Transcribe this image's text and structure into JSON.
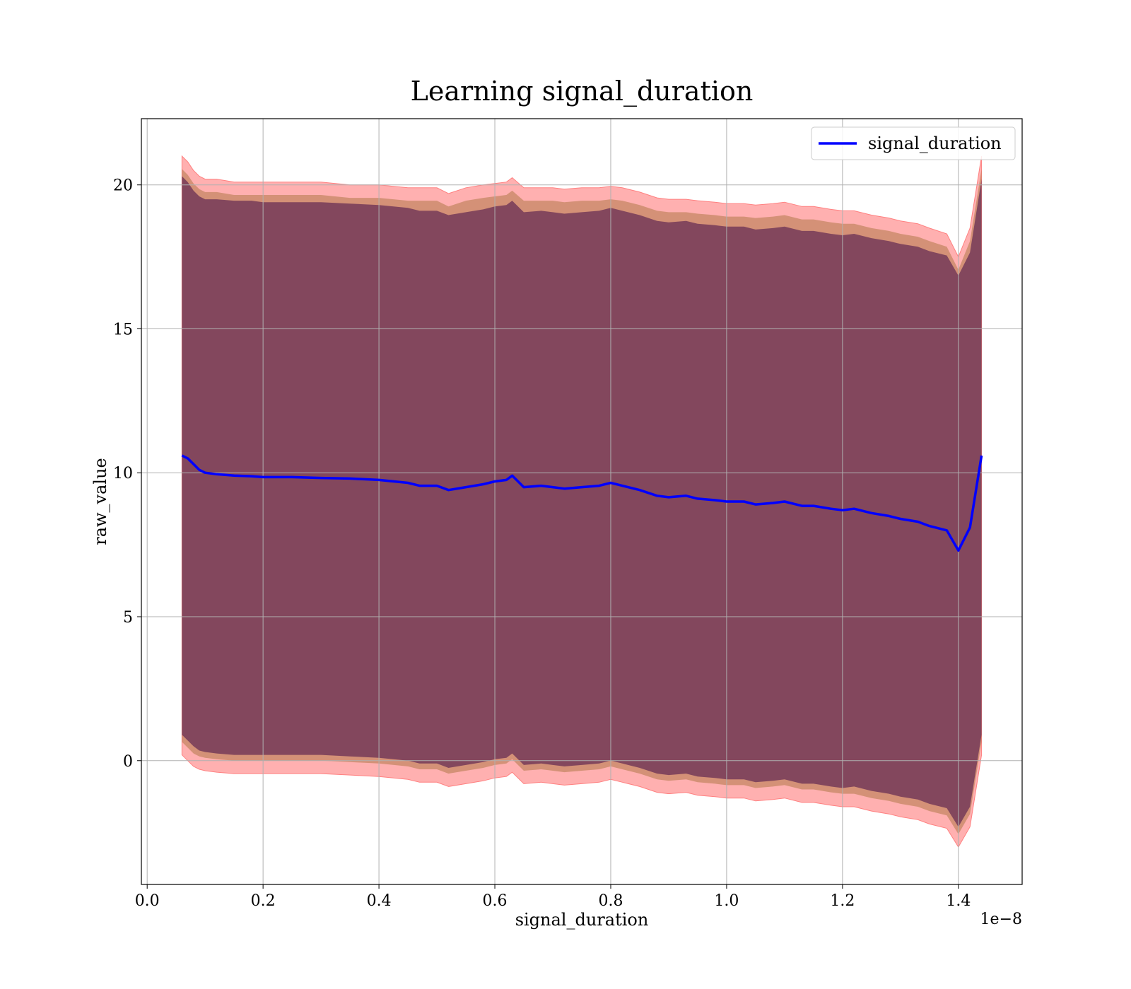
{
  "chart_data": {
    "type": "line",
    "title": "Learning signal_duration",
    "xlabel": "signal_duration",
    "ylabel": "raw_value",
    "x_offset_label": "1e−8",
    "xlim": [
      -0.01,
      1.51
    ],
    "ylim": [
      -4.3,
      22.3
    ],
    "x_ticks": [
      0.0,
      0.2,
      0.4,
      0.6,
      0.8,
      1.0,
      1.2,
      1.4
    ],
    "x_tick_labels": [
      "0.0",
      "0.2",
      "0.4",
      "0.6",
      "0.8",
      "1.0",
      "1.2",
      "1.4"
    ],
    "y_ticks": [
      0,
      5,
      10,
      15,
      20
    ],
    "y_tick_labels": [
      "0",
      "5",
      "10",
      "15",
      "20"
    ],
    "grid": true,
    "legend_position": "top-right",
    "colors": {
      "line": "#0000ff",
      "band_outer": "#ff8080",
      "band_middle": "#b07848",
      "band_inner": "#7a3f5a"
    },
    "series": [
      {
        "name": "signal_duration",
        "x": [
          0.06,
          0.07,
          0.08,
          0.09,
          0.1,
          0.12,
          0.15,
          0.18,
          0.2,
          0.25,
          0.3,
          0.35,
          0.4,
          0.45,
          0.47,
          0.5,
          0.52,
          0.55,
          0.58,
          0.6,
          0.62,
          0.63,
          0.65,
          0.68,
          0.7,
          0.72,
          0.75,
          0.78,
          0.8,
          0.82,
          0.85,
          0.88,
          0.9,
          0.93,
          0.95,
          0.98,
          1.0,
          1.03,
          1.05,
          1.08,
          1.1,
          1.13,
          1.15,
          1.18,
          1.2,
          1.22,
          1.25,
          1.28,
          1.3,
          1.33,
          1.35,
          1.38,
          1.4,
          1.42,
          1.44
        ],
        "y": [
          10.6,
          10.5,
          10.3,
          10.1,
          10.0,
          9.95,
          9.9,
          9.88,
          9.85,
          9.85,
          9.82,
          9.8,
          9.75,
          9.65,
          9.55,
          9.55,
          9.4,
          9.5,
          9.6,
          9.7,
          9.75,
          9.9,
          9.5,
          9.55,
          9.5,
          9.45,
          9.5,
          9.55,
          9.65,
          9.55,
          9.4,
          9.2,
          9.15,
          9.2,
          9.1,
          9.05,
          9.0,
          9.0,
          8.9,
          8.95,
          9.0,
          8.85,
          8.85,
          8.75,
          8.7,
          8.75,
          8.6,
          8.5,
          8.4,
          8.3,
          8.15,
          8.0,
          7.3,
          8.1,
          10.6
        ],
        "band_outer_upper": [
          21.0,
          20.8,
          20.5,
          20.3,
          20.2,
          20.2,
          20.1,
          20.1,
          20.1,
          20.1,
          20.1,
          20.0,
          20.0,
          19.9,
          19.9,
          19.9,
          19.7,
          19.9,
          20.0,
          20.05,
          20.1,
          20.25,
          19.9,
          19.9,
          19.9,
          19.85,
          19.9,
          19.9,
          19.95,
          19.9,
          19.75,
          19.55,
          19.5,
          19.5,
          19.45,
          19.4,
          19.35,
          19.35,
          19.3,
          19.35,
          19.4,
          19.25,
          19.25,
          19.15,
          19.1,
          19.1,
          18.95,
          18.85,
          18.75,
          18.65,
          18.5,
          18.3,
          17.5,
          18.5,
          21.0
        ],
        "band_outer_lower": [
          0.2,
          0.0,
          -0.2,
          -0.3,
          -0.35,
          -0.4,
          -0.45,
          -0.45,
          -0.45,
          -0.45,
          -0.45,
          -0.5,
          -0.55,
          -0.65,
          -0.75,
          -0.75,
          -0.9,
          -0.8,
          -0.7,
          -0.6,
          -0.55,
          -0.4,
          -0.8,
          -0.75,
          -0.8,
          -0.85,
          -0.8,
          -0.75,
          -0.65,
          -0.75,
          -0.9,
          -1.1,
          -1.15,
          -1.1,
          -1.2,
          -1.25,
          -1.3,
          -1.3,
          -1.4,
          -1.35,
          -1.3,
          -1.45,
          -1.45,
          -1.55,
          -1.6,
          -1.6,
          -1.75,
          -1.85,
          -1.95,
          -2.05,
          -2.2,
          -2.35,
          -3.0,
          -2.3,
          0.2
        ],
        "band_inner_upper": [
          20.3,
          20.1,
          19.8,
          19.6,
          19.5,
          19.5,
          19.45,
          19.45,
          19.4,
          19.4,
          19.4,
          19.35,
          19.3,
          19.2,
          19.1,
          19.1,
          18.95,
          19.05,
          19.15,
          19.25,
          19.3,
          19.45,
          19.05,
          19.1,
          19.05,
          19.0,
          19.05,
          19.1,
          19.2,
          19.1,
          18.95,
          18.75,
          18.7,
          18.75,
          18.65,
          18.6,
          18.55,
          18.55,
          18.45,
          18.5,
          18.55,
          18.4,
          18.4,
          18.3,
          18.25,
          18.3,
          18.15,
          18.05,
          17.95,
          17.85,
          17.7,
          17.55,
          16.85,
          17.65,
          20.2
        ],
        "band_inner_lower": [
          0.9,
          0.7,
          0.5,
          0.35,
          0.3,
          0.25,
          0.2,
          0.2,
          0.2,
          0.2,
          0.2,
          0.15,
          0.1,
          0.0,
          -0.1,
          -0.1,
          -0.25,
          -0.15,
          -0.05,
          0.05,
          0.1,
          0.25,
          -0.15,
          -0.1,
          -0.15,
          -0.2,
          -0.15,
          -0.1,
          0.0,
          -0.1,
          -0.25,
          -0.45,
          -0.5,
          -0.45,
          -0.55,
          -0.6,
          -0.65,
          -0.65,
          -0.75,
          -0.7,
          -0.65,
          -0.8,
          -0.8,
          -0.9,
          -0.95,
          -0.9,
          -1.05,
          -1.15,
          -1.25,
          -1.35,
          -1.5,
          -1.65,
          -2.3,
          -1.6,
          0.9
        ]
      }
    ]
  }
}
